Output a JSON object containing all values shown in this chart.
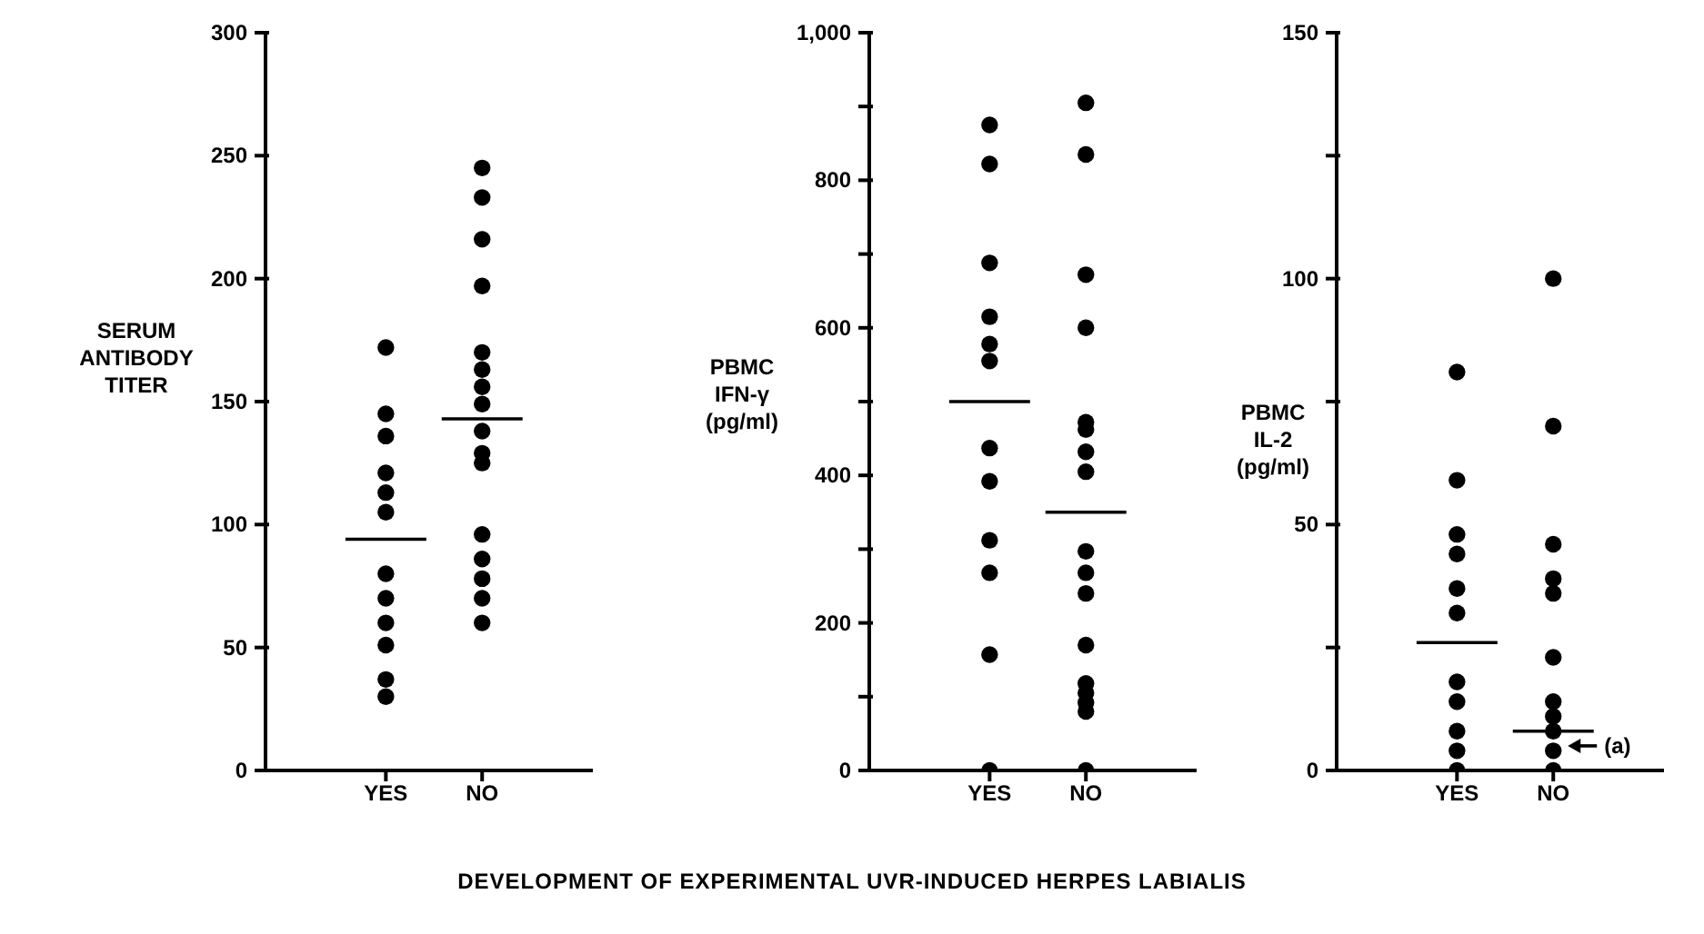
{
  "chart_data": [
    {
      "type": "scatter",
      "ylabel": "SERUM\nANTIBODY\nTITER",
      "categories": [
        "YES",
        "NO"
      ],
      "ylim": [
        0,
        300
      ],
      "yticks": [
        0,
        50,
        100,
        150,
        200,
        250,
        300
      ],
      "marker": "circle",
      "series": [
        {
          "color": "#000000",
          "x": [
            "YES",
            "YES",
            "YES",
            "YES",
            "YES",
            "YES",
            "YES",
            "YES",
            "YES",
            "YES",
            "YES",
            "YES",
            "NO",
            "NO",
            "NO",
            "NO",
            "NO",
            "NO",
            "NO",
            "NO",
            "NO",
            "NO",
            "NO",
            "NO",
            "NO",
            "NO",
            "NO",
            "NO"
          ],
          "values": [
            172,
            145,
            136,
            121,
            113,
            105,
            80,
            70,
            60,
            51,
            37,
            30,
            245,
            233,
            216,
            197,
            170,
            163,
            156,
            149,
            138,
            129,
            125,
            96,
            86,
            78,
            70,
            60
          ]
        }
      ],
      "ref_lines": [
        {
          "axis": "y",
          "value": 94,
          "color": "#000000"
        },
        {
          "axis": "y",
          "value": 143,
          "color": "#000000"
        }
      ]
    },
    {
      "type": "scatter",
      "ylabel": "PBMC\nIFN-γ\n(pg/ml)",
      "xlabel": "DEVELOPMENT OF EXPERIMENTAL UVR-INDUCED HERPES LABIALIS",
      "categories": [
        "YES",
        "NO"
      ],
      "ylim": [
        0,
        1000
      ],
      "yticks": [
        0,
        {
          "value": 100,
          "label": null
        },
        200,
        {
          "value": 300,
          "label": null
        },
        400,
        {
          "value": 500,
          "label": null
        },
        600,
        {
          "value": 700,
          "label": null
        },
        800,
        {
          "value": 900,
          "label": null
        },
        {
          "value": 1000,
          "label": "1,000"
        }
      ],
      "marker": "circle",
      "series": [
        {
          "color": "#000000",
          "x": [
            "YES",
            "YES",
            "YES",
            "YES",
            "YES",
            "YES",
            "YES",
            "YES",
            "YES",
            "YES",
            "YES",
            "YES",
            "NO",
            "NO",
            "NO",
            "NO",
            "NO",
            "NO",
            "NO",
            "NO",
            "NO",
            "NO",
            "NO",
            "NO",
            "NO",
            "NO",
            "NO",
            "NO",
            "NO"
          ],
          "values": [
            875,
            822,
            688,
            615,
            578,
            555,
            437,
            392,
            312,
            268,
            157,
            0,
            905,
            835,
            672,
            600,
            472,
            462,
            432,
            405,
            297,
            268,
            240,
            170,
            118,
            105,
            92,
            80,
            0
          ]
        }
      ],
      "ref_lines": [
        {
          "axis": "y",
          "value": 500,
          "color": "#000000"
        },
        {
          "axis": "y",
          "value": 350,
          "color": "#000000"
        }
      ]
    },
    {
      "type": "scatter",
      "ylabel": "PBMC\nIL-2\n(pg/ml)",
      "categories": [
        "YES",
        "NO"
      ],
      "ylim": [
        0,
        150
      ],
      "yticks": [
        0,
        {
          "value": 25,
          "label": null
        },
        50,
        {
          "value": 75,
          "label": null
        },
        100,
        {
          "value": 125,
          "label": null
        },
        150
      ],
      "marker": "circle",
      "annotations": [
        {
          "text": "(a)",
          "x": "NO",
          "y": 5
        }
      ],
      "series": [
        {
          "color": "#000000",
          "x": [
            "YES",
            "YES",
            "YES",
            "YES",
            "YES",
            "YES",
            "YES",
            "YES",
            "YES",
            "YES",
            "YES",
            "NO",
            "NO",
            "NO",
            "NO",
            "NO",
            "NO",
            "NO",
            "NO",
            "NO",
            "NO",
            "NO"
          ],
          "values": [
            81,
            59,
            48,
            44,
            37,
            32,
            18,
            14,
            8,
            4,
            0,
            100,
            70,
            46,
            39,
            36,
            23,
            14,
            11,
            8,
            4,
            0
          ]
        }
      ],
      "ref_lines": [
        {
          "axis": "y",
          "value": 26,
          "color": "#000000"
        },
        {
          "axis": "y",
          "value": 8,
          "color": "#000000"
        }
      ]
    }
  ]
}
